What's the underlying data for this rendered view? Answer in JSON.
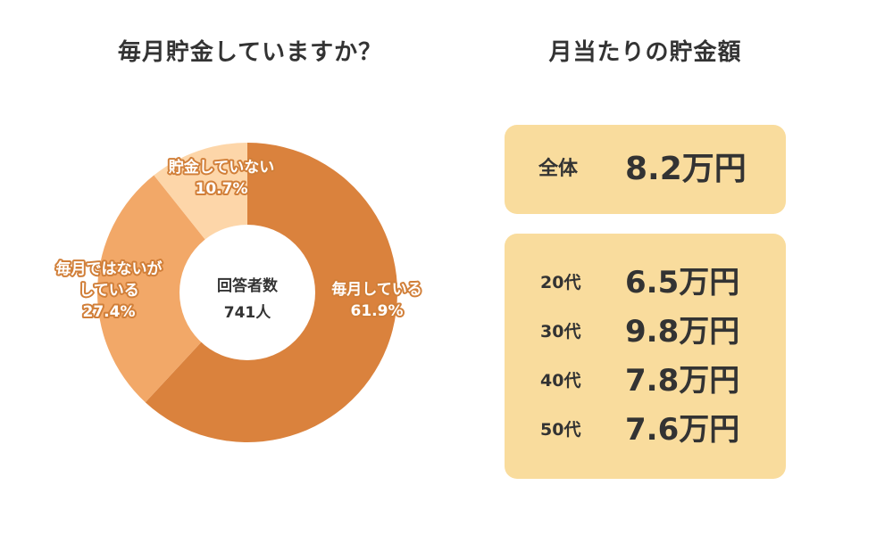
{
  "left_title": "毎月貯金していますか？",
  "right_title": "月当たりの貯金額",
  "chart_data": {
    "type": "pie",
    "variant": "donut",
    "title": "毎月貯金していますか？",
    "center_label": "回答者数",
    "center_value": "741人",
    "series": [
      {
        "name": "毎月している",
        "value": 61.9,
        "label_lines": [
          "毎月している",
          "61.9%"
        ],
        "color": "#da823d"
      },
      {
        "name": "毎月ではないがしている",
        "value": 27.4,
        "label_lines": [
          "毎月ではないが",
          "している",
          "27.4%"
        ],
        "color": "#f2a868"
      },
      {
        "name": "貯金していない",
        "value": 10.7,
        "label_lines": [
          "貯金していない",
          "10.7%"
        ],
        "color": "#fdd6a9"
      }
    ]
  },
  "savings": {
    "title": "月当たりの貯金額",
    "overall": {
      "label": "全体",
      "value": "8.2万円"
    },
    "by_age": [
      {
        "label": "20代",
        "value": "6.5万円"
      },
      {
        "label": "30代",
        "value": "9.8万円"
      },
      {
        "label": "40代",
        "value": "7.8万円"
      },
      {
        "label": "50代",
        "value": "7.6万円"
      }
    ]
  },
  "colors": {
    "box_background": "#f9dc9d",
    "text": "#333333",
    "label_outline": "#d17f39"
  }
}
